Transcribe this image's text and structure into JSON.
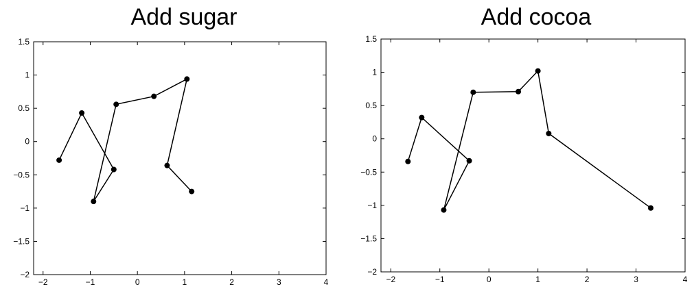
{
  "chart_data": [
    {
      "type": "line",
      "title": "Add sugar",
      "xlabel": "",
      "ylabel": "",
      "xlim": [
        -2.2,
        4
      ],
      "ylim": [
        -2,
        1.5
      ],
      "xticks": [
        -2,
        -1,
        0,
        1,
        2,
        3,
        4
      ],
      "xtick_labels": [
        "−2",
        "−1",
        "0",
        "1",
        "2",
        "3",
        "4"
      ],
      "yticks": [
        -2,
        -1.5,
        -1,
        -0.5,
        0,
        0.5,
        1,
        1.5
      ],
      "ytick_labels": [
        "−2",
        "−1.5",
        "−1",
        "−0.5",
        "0",
        "0.5",
        "1",
        "1.5"
      ],
      "grid": false,
      "marker": "filled-circle",
      "line_color": "#000000",
      "series": [
        {
          "x": [
            -1.66,
            -1.18,
            -0.5,
            -0.93,
            -0.45,
            0.35,
            1.05,
            0.63,
            1.15
          ],
          "y": [
            -0.28,
            0.43,
            -0.42,
            -0.9,
            0.56,
            0.68,
            0.94,
            -0.36,
            -0.75
          ]
        }
      ]
    },
    {
      "type": "line",
      "title": "Add cocoa",
      "xlabel": "",
      "ylabel": "",
      "xlim": [
        -2.2,
        4
      ],
      "ylim": [
        -2,
        1.5
      ],
      "xticks": [
        -2,
        -1,
        0,
        1,
        2,
        3,
        4
      ],
      "xtick_labels": [
        "−2",
        "−1",
        "0",
        "1",
        "2",
        "3",
        "4"
      ],
      "yticks": [
        -2,
        -1.5,
        -1,
        -0.5,
        0,
        0.5,
        1,
        1.5
      ],
      "ytick_labels": [
        "−2",
        "−1.5",
        "−1",
        "−0.5",
        "0",
        "0.5",
        "1",
        "1.5"
      ],
      "grid": false,
      "marker": "filled-circle",
      "line_color": "#000000",
      "series": [
        {
          "x": [
            -1.65,
            -1.37,
            -0.4,
            -0.92,
            -0.32,
            0.6,
            1.0,
            1.22,
            3.3
          ],
          "y": [
            -0.34,
            0.32,
            -0.33,
            -1.07,
            0.7,
            0.71,
            1.02,
            0.08,
            -1.04
          ]
        }
      ]
    }
  ]
}
